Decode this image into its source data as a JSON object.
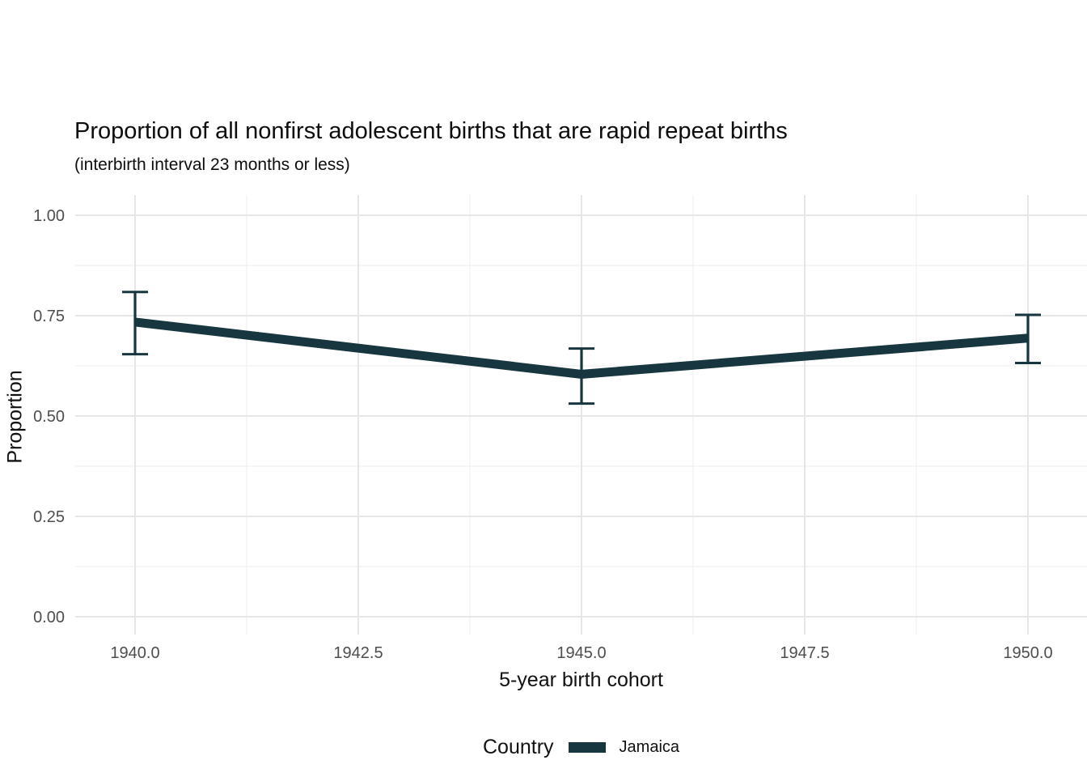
{
  "header": {
    "title": "Proportion of all nonfirst adolescent births that are rapid repeat births",
    "subtitle": "(interbirth interval 23 months or less)"
  },
  "axes": {
    "x_title": "5-year birth cohort",
    "y_title": "Proportion"
  },
  "legend": {
    "title": "Country",
    "items": [
      {
        "label": "Jamaica",
        "color": "#17363f"
      }
    ]
  },
  "colors": {
    "series": "#17363f",
    "grid_major": "#e6e6e6",
    "grid_minor": "#f0f0f0",
    "tick_label": "#4d4d4d",
    "title_text": "#111111",
    "background": "#ffffff"
  },
  "chart_data": {
    "type": "line",
    "title": "Proportion of all nonfirst adolescent births that are rapid repeat births",
    "subtitle": "(interbirth interval 23 months or less)",
    "xlabel": "5-year birth cohort",
    "ylabel": "Proportion",
    "legend_position": "bottom",
    "grid": "major and minor, light gray, no axis lines (ggplot theme_minimal style)",
    "xlim": [
      1939.33,
      1950.66
    ],
    "ylim": [
      -0.045,
      1.05
    ],
    "x": [
      1940,
      1945,
      1950
    ],
    "xticks": {
      "values": [
        1940,
        1942.5,
        1945,
        1947.5,
        1950
      ],
      "labels": [
        "1940.0",
        "1942.5",
        "1945.0",
        "1947.5",
        "1950.0"
      ]
    },
    "yticks": {
      "values": [
        0,
        0.25,
        0.5,
        0.75,
        1.0
      ],
      "labels": [
        "0.00",
        "0.25",
        "0.50",
        "0.75",
        "1.00"
      ]
    },
    "series": [
      {
        "name": "Jamaica",
        "color": "#17363f",
        "values": [
          0.734,
          0.604,
          0.694
        ],
        "ci_low": [
          0.654,
          0.531,
          0.632
        ],
        "ci_high": [
          0.809,
          0.668,
          0.752
        ]
      }
    ]
  }
}
